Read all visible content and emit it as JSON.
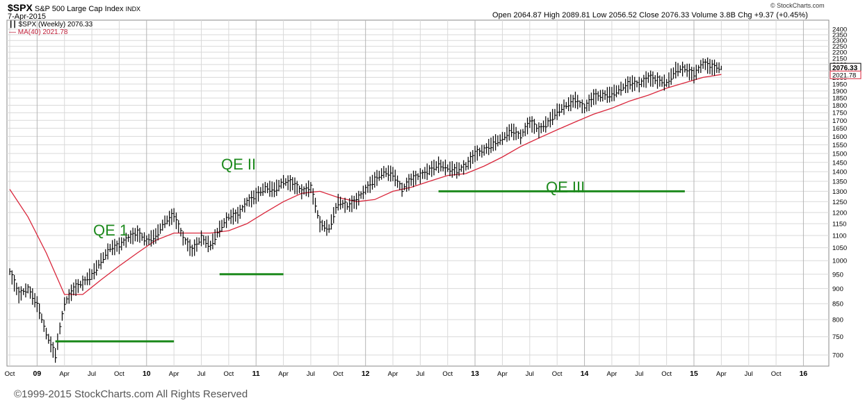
{
  "header": {
    "symbol": "$SPX",
    "index_name": "S&P 500 Large Cap Index",
    "exchange": "INDX",
    "date": "7-Apr-2015",
    "source": "© StockCharts.com",
    "ohlc_text": "Open 2064.87  High 2089.81  Low 2056.52  Close 2076.33  Volume 3.8B  Chg +9.37 (+0.45%)"
  },
  "legend": {
    "price_label": "$SPX (Weekly) 2076.33",
    "ma_label": "MA(40) 2021.78"
  },
  "last_price_tag": "2076.33",
  "last_ma_tag": "2021.78",
  "copyright": "©1999-2015 StockCharts.com All Rights Reserved",
  "colors": {
    "price_bars": "#000000",
    "ma_line": "#d9263b",
    "annotations": "#1d8a1d",
    "grid": "#d9d9d9"
  },
  "chart_data": {
    "type": "line",
    "title": "$SPX S&P 500 Large Cap Index INDX",
    "ylim": [
      650,
      2450
    ],
    "y_scale": "log",
    "y_ticks": [
      700,
      750,
      800,
      850,
      900,
      950,
      1000,
      1050,
      1100,
      1150,
      1200,
      1250,
      1300,
      1350,
      1400,
      1450,
      1500,
      1550,
      1600,
      1650,
      1700,
      1750,
      1800,
      1850,
      1900,
      1950,
      2000,
      2050,
      2100,
      2150,
      2200,
      2250,
      2300,
      2350,
      2400
    ],
    "x_ticks": [
      "Oct",
      "09",
      "Apr",
      "Jul",
      "Oct",
      "10",
      "Apr",
      "Jul",
      "Oct",
      "11",
      "Apr",
      "Jul",
      "Oct",
      "12",
      "Apr",
      "Jul",
      "Oct",
      "13",
      "Apr",
      "Jul",
      "Oct",
      "14",
      "Apr",
      "Jul",
      "Oct",
      "15",
      "Apr",
      "Jul",
      "Oct",
      "16"
    ],
    "grid": true,
    "series": [
      {
        "name": "$SPX (Weekly)",
        "x": [
          "2008-10",
          "2008-11",
          "2008-12",
          "2009-01",
          "2009-02",
          "2009-03",
          "2009-04",
          "2009-05",
          "2009-06",
          "2009-07",
          "2009-08",
          "2009-09",
          "2009-10",
          "2009-11",
          "2009-12",
          "2010-01",
          "2010-02",
          "2010-03",
          "2010-04",
          "2010-05",
          "2010-06",
          "2010-07",
          "2010-08",
          "2010-09",
          "2010-10",
          "2010-11",
          "2010-12",
          "2011-01",
          "2011-02",
          "2011-03",
          "2011-04",
          "2011-05",
          "2011-06",
          "2011-07",
          "2011-08",
          "2011-09",
          "2011-10",
          "2011-11",
          "2011-12",
          "2012-01",
          "2012-02",
          "2012-03",
          "2012-04",
          "2012-05",
          "2012-06",
          "2012-07",
          "2012-08",
          "2012-09",
          "2012-10",
          "2012-11",
          "2012-12",
          "2013-01",
          "2013-02",
          "2013-03",
          "2013-04",
          "2013-05",
          "2013-06",
          "2013-07",
          "2013-08",
          "2013-09",
          "2013-10",
          "2013-11",
          "2013-12",
          "2014-01",
          "2014-02",
          "2014-03",
          "2014-04",
          "2014-05",
          "2014-06",
          "2014-07",
          "2014-08",
          "2014-09",
          "2014-10",
          "2014-11",
          "2014-12",
          "2015-01",
          "2015-02",
          "2015-03",
          "2015-04"
        ],
        "values": [
          960,
          880,
          900,
          850,
          760,
          700,
          850,
          900,
          920,
          950,
          1000,
          1050,
          1060,
          1090,
          1110,
          1080,
          1100,
          1160,
          1190,
          1090,
          1040,
          1090,
          1060,
          1130,
          1180,
          1190,
          1250,
          1280,
          1320,
          1310,
          1350,
          1340,
          1300,
          1320,
          1150,
          1130,
          1250,
          1230,
          1255,
          1310,
          1360,
          1400,
          1390,
          1310,
          1360,
          1380,
          1410,
          1440,
          1420,
          1410,
          1430,
          1500,
          1520,
          1560,
          1590,
          1640,
          1600,
          1690,
          1640,
          1690,
          1760,
          1800,
          1840,
          1780,
          1860,
          1870,
          1880,
          1920,
          1960,
          1950,
          2000,
          1980,
          1960,
          2060,
          2070,
          2020,
          2110,
          2080,
          2076
        ]
      },
      {
        "name": "MA(40)",
        "x": [
          "2008-10",
          "2008-12",
          "2009-02",
          "2009-04",
          "2009-06",
          "2009-08",
          "2009-10",
          "2009-12",
          "2010-02",
          "2010-04",
          "2010-06",
          "2010-08",
          "2010-10",
          "2010-12",
          "2011-02",
          "2011-04",
          "2011-06",
          "2011-08",
          "2011-10",
          "2011-12",
          "2012-02",
          "2012-04",
          "2012-06",
          "2012-08",
          "2012-10",
          "2012-12",
          "2013-02",
          "2013-04",
          "2013-06",
          "2013-08",
          "2013-10",
          "2013-12",
          "2014-02",
          "2014-04",
          "2014-06",
          "2014-08",
          "2014-10",
          "2014-12",
          "2015-02",
          "2015-04"
        ],
        "values": [
          1310,
          1180,
          1030,
          880,
          880,
          930,
          980,
          1030,
          1080,
          1110,
          1110,
          1110,
          1120,
          1150,
          1200,
          1250,
          1290,
          1300,
          1270,
          1250,
          1260,
          1300,
          1320,
          1350,
          1380,
          1390,
          1430,
          1480,
          1540,
          1590,
          1640,
          1690,
          1740,
          1780,
          1830,
          1870,
          1920,
          1960,
          2000,
          2022
        ]
      }
    ],
    "annotations": [
      {
        "text": "QE 1",
        "level": 737,
        "from": "2009-03",
        "to": "2010-04"
      },
      {
        "text": "QE II",
        "level": 950,
        "from": "2010-09",
        "to": "2011-04"
      },
      {
        "text": "QE III",
        "level": 1300,
        "from": "2012-09",
        "to": "2014-12"
      }
    ]
  }
}
